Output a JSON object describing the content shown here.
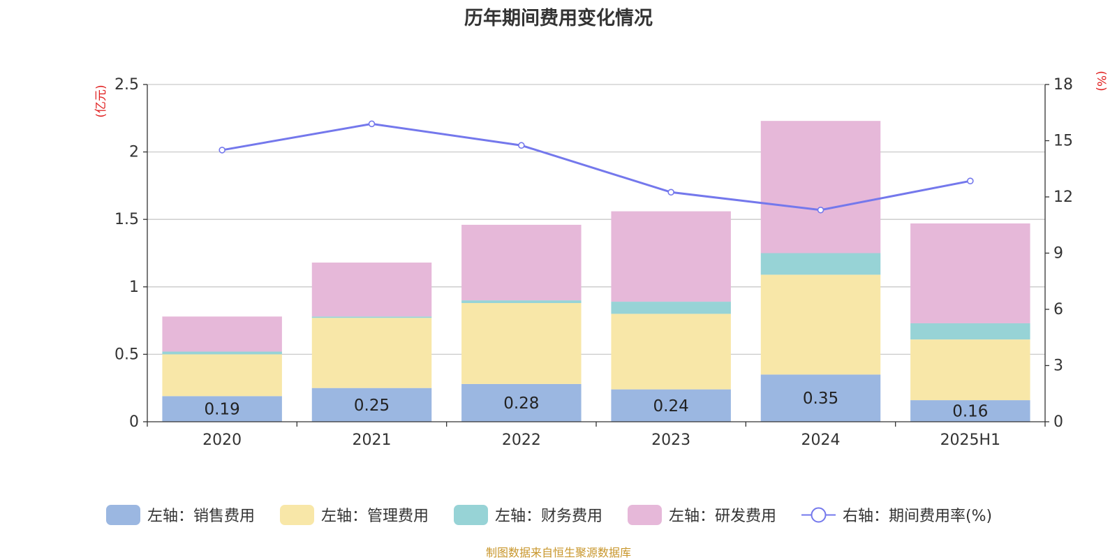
{
  "title": "历年期间费用变化情况",
  "source": "制图数据来自恒生聚源数据库",
  "chart_data": {
    "type": "bar",
    "stacked": true,
    "categories": [
      "2020",
      "2021",
      "2022",
      "2023",
      "2024",
      "2025H1"
    ],
    "y_left": {
      "unit_label": "(亿元)",
      "ylim": [
        0,
        2.5
      ],
      "ticks": [
        "0",
        "0.5",
        "1",
        "1.5",
        "2",
        "2.5"
      ]
    },
    "y_right": {
      "unit_label": "(%)",
      "ylim": [
        0,
        18
      ],
      "ticks": [
        "0",
        "3",
        "6",
        "9",
        "12",
        "15",
        "18"
      ]
    },
    "series": [
      {
        "name": "左轴：销售费用",
        "type": "bar",
        "axis": "left",
        "color": "#9bb7e1",
        "values": [
          0.19,
          0.25,
          0.28,
          0.24,
          0.35,
          0.16
        ],
        "labels": [
          "0.19",
          "0.25",
          "0.28",
          "0.24",
          "0.35",
          "0.16"
        ]
      },
      {
        "name": "左轴：管理费用",
        "type": "bar",
        "axis": "left",
        "color": "#f8e7a8",
        "values": [
          0.31,
          0.52,
          0.6,
          0.56,
          0.74,
          0.45
        ]
      },
      {
        "name": "左轴：财务费用",
        "type": "bar",
        "axis": "left",
        "color": "#97d3d6",
        "values": [
          0.02,
          0.01,
          0.02,
          0.09,
          0.16,
          0.12
        ]
      },
      {
        "name": "左轴：研发费用",
        "type": "bar",
        "axis": "left",
        "color": "#e6b8d9",
        "values": [
          0.26,
          0.4,
          0.56,
          0.67,
          0.98,
          0.74
        ]
      },
      {
        "name": "右轴：期间费用率(%)",
        "type": "line",
        "axis": "right",
        "color": "#7478ec",
        "values": [
          14.5,
          15.9,
          14.75,
          12.25,
          11.3,
          12.85
        ]
      }
    ],
    "grid": true,
    "legend_position": "bottom"
  }
}
